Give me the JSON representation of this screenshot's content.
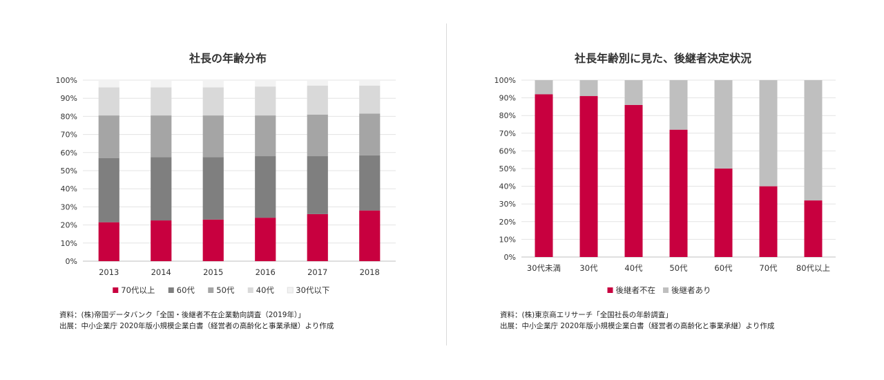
{
  "chart_data": [
    {
      "type": "bar",
      "stacked": true,
      "title": "社長の年齢分布",
      "categories": [
        "2013",
        "2014",
        "2015",
        "2016",
        "2017",
        "2018"
      ],
      "series": [
        {
          "name": "70代以上",
          "color": "#c8003f",
          "values": [
            21.5,
            22.5,
            23,
            24,
            26,
            28
          ]
        },
        {
          "name": "60代",
          "color": "#7f7f7f",
          "values": [
            35.5,
            35,
            34.5,
            34,
            32,
            30.5
          ]
        },
        {
          "name": "50代",
          "color": "#a5a5a5",
          "values": [
            23.5,
            23,
            23,
            22.5,
            23,
            23
          ]
        },
        {
          "name": "40代",
          "color": "#d9d9d9",
          "values": [
            15.5,
            15.5,
            15.5,
            16,
            16,
            15.5
          ]
        },
        {
          "name": "30代以下",
          "color": "#f2f2f2",
          "values": [
            4,
            4,
            4,
            3.5,
            3,
            3
          ]
        }
      ],
      "ylim": [
        0,
        100
      ],
      "yticks": [
        "0%",
        "10%",
        "20%",
        "30%",
        "40%",
        "50%",
        "60%",
        "70%",
        "80%",
        "90%",
        "100%"
      ],
      "legend": "bottom"
    },
    {
      "type": "bar",
      "stacked": true,
      "title": "社長年齢別に見た、後継者決定状況",
      "categories": [
        "30代未満",
        "30代",
        "40代",
        "50代",
        "60代",
        "70代",
        "80代以上"
      ],
      "series": [
        {
          "name": "後継者不在",
          "color": "#c8003f",
          "values": [
            92,
            91,
            86,
            72,
            50,
            40,
            32
          ]
        },
        {
          "name": "後継者あり",
          "color": "#bfbfbf",
          "values": [
            8,
            9,
            14,
            28,
            50,
            60,
            68
          ]
        }
      ],
      "ylim": [
        0,
        100
      ],
      "yticks": [
        "0%",
        "10%",
        "20%",
        "30%",
        "40%",
        "50%",
        "60%",
        "70%",
        "80%",
        "90%",
        "100%"
      ],
      "legend": "bottom"
    }
  ],
  "sources": {
    "left": {
      "line1": "資料：(株)帝国データバンク「全国・後継者不在企業動向調査（2019年）」",
      "line2": "出展：中小企業庁 2020年版小規模企業白書（経営者の高齢化と事業承継）より作成"
    },
    "right": {
      "line1": "資料：(株)東京商エリサーチ「全国社長の年齢調査」",
      "line2": "出展：中小企業庁 2020年版小規模企業白書（経営者の高齢化と事業承継）より作成"
    }
  }
}
